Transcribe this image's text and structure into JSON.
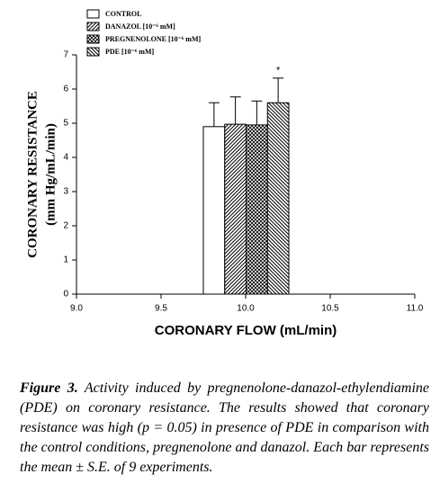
{
  "chart_data": {
    "type": "bar",
    "x": [
      10.0
    ],
    "series": [
      {
        "name": "CONTROL",
        "color": "#ffffff",
        "pattern": "none",
        "values": [
          4.9
        ],
        "errors": [
          0.7
        ]
      },
      {
        "name": "DANAZOL [10⁻⁶ mM]",
        "color": "#ffffff",
        "pattern": "diagonal",
        "values": [
          4.97
        ],
        "errors": [
          0.8
        ]
      },
      {
        "name": "PREGNENOLONE [10⁻⁶ mM]",
        "color": "#ffffff",
        "pattern": "crosshatch",
        "values": [
          4.95
        ],
        "errors": [
          0.7
        ]
      },
      {
        "name": "PDE [10⁻⁶ mM]",
        "color": "#ffffff",
        "pattern": "backdiagonal",
        "values": [
          5.6
        ],
        "errors": [
          0.72
        ]
      }
    ],
    "annotations": [
      "*"
    ],
    "xlabel": "CORONARY FLOW (mL/min)",
    "ylabel": [
      "CORONARY RESISTANCE",
      "(mm Hg/mL/min)"
    ],
    "xlim": [
      9.0,
      11.0
    ],
    "xticks": [
      {
        "value": 9.0,
        "label": "9.0"
      },
      {
        "value": 9.5,
        "label": "9.5"
      },
      {
        "value": 10.0,
        "label": "10.0"
      },
      {
        "value": 10.5,
        "label": "10.5"
      },
      {
        "value": 11.0,
        "label": "11.0"
      }
    ],
    "ylim": [
      0,
      7
    ],
    "yticks": [
      0,
      1,
      2,
      3,
      4,
      5,
      6,
      7
    ],
    "legend": "top-left"
  },
  "caption_label": "Figure 3.",
  "caption": "Activity induced by pregnenolone-danazol-ethylendiamine (PDE) on coronary resistance. The results showed that coronary resistance was high (p = 0.05) in presence of PDE in comparison with the control conditions, pregnenolone and danazol. Each bar represents the mean ± S.E. of 9 experiments."
}
